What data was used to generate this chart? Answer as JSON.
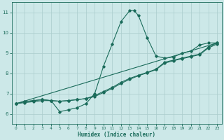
{
  "bg_color": "#cce8e8",
  "plot_bg_color": "#cce8e8",
  "grid_color": "#aacccc",
  "line_color": "#1a6b5a",
  "xlabel": "Humidex (Indice chaleur)",
  "xlim": [
    -0.5,
    23.5
  ],
  "ylim": [
    5.5,
    11.5
  ],
  "yticks": [
    6,
    7,
    8,
    9,
    10,
    11
  ],
  "xticks": [
    0,
    1,
    2,
    3,
    4,
    5,
    6,
    7,
    8,
    9,
    10,
    11,
    12,
    13,
    14,
    15,
    16,
    17,
    18,
    19,
    20,
    21,
    22,
    23
  ],
  "line1_x": [
    0,
    1,
    2,
    3,
    4,
    5,
    6,
    7,
    8,
    9,
    10,
    11,
    12,
    13,
    13.5,
    14,
    15,
    16,
    17,
    18,
    19,
    20,
    21,
    22,
    23
  ],
  "line1_y": [
    6.5,
    6.6,
    6.65,
    6.7,
    6.65,
    6.1,
    6.2,
    6.3,
    6.5,
    7.0,
    8.35,
    9.45,
    10.55,
    11.1,
    11.1,
    10.85,
    9.75,
    8.85,
    8.75,
    8.8,
    9.0,
    9.1,
    9.4,
    9.5,
    9.5
  ],
  "line2_x": [
    0,
    1,
    2,
    3,
    4,
    5,
    6,
    7,
    8,
    9,
    10,
    11,
    12,
    13,
    14,
    15,
    16,
    17,
    18,
    19,
    20,
    21,
    22,
    23
  ],
  "line2_y": [
    6.5,
    6.6,
    6.65,
    6.7,
    6.65,
    6.62,
    6.65,
    6.7,
    6.75,
    6.9,
    7.1,
    7.3,
    7.55,
    7.75,
    7.9,
    8.05,
    8.2,
    8.55,
    8.65,
    8.75,
    8.85,
    8.95,
    9.3,
    9.5
  ],
  "line3_x": [
    0,
    23
  ],
  "line3_y": [
    6.5,
    9.5
  ],
  "line4_x": [
    0,
    1,
    2,
    3,
    4,
    5,
    6,
    7,
    8,
    9,
    10,
    11,
    12,
    13,
    14,
    15,
    16,
    17,
    18,
    19,
    20,
    21,
    22,
    23
  ],
  "line4_y": [
    6.5,
    6.55,
    6.6,
    6.65,
    6.65,
    6.62,
    6.65,
    6.7,
    6.75,
    6.85,
    7.05,
    7.25,
    7.5,
    7.7,
    7.88,
    8.02,
    8.18,
    8.5,
    8.62,
    8.72,
    8.82,
    8.92,
    9.25,
    9.45
  ]
}
